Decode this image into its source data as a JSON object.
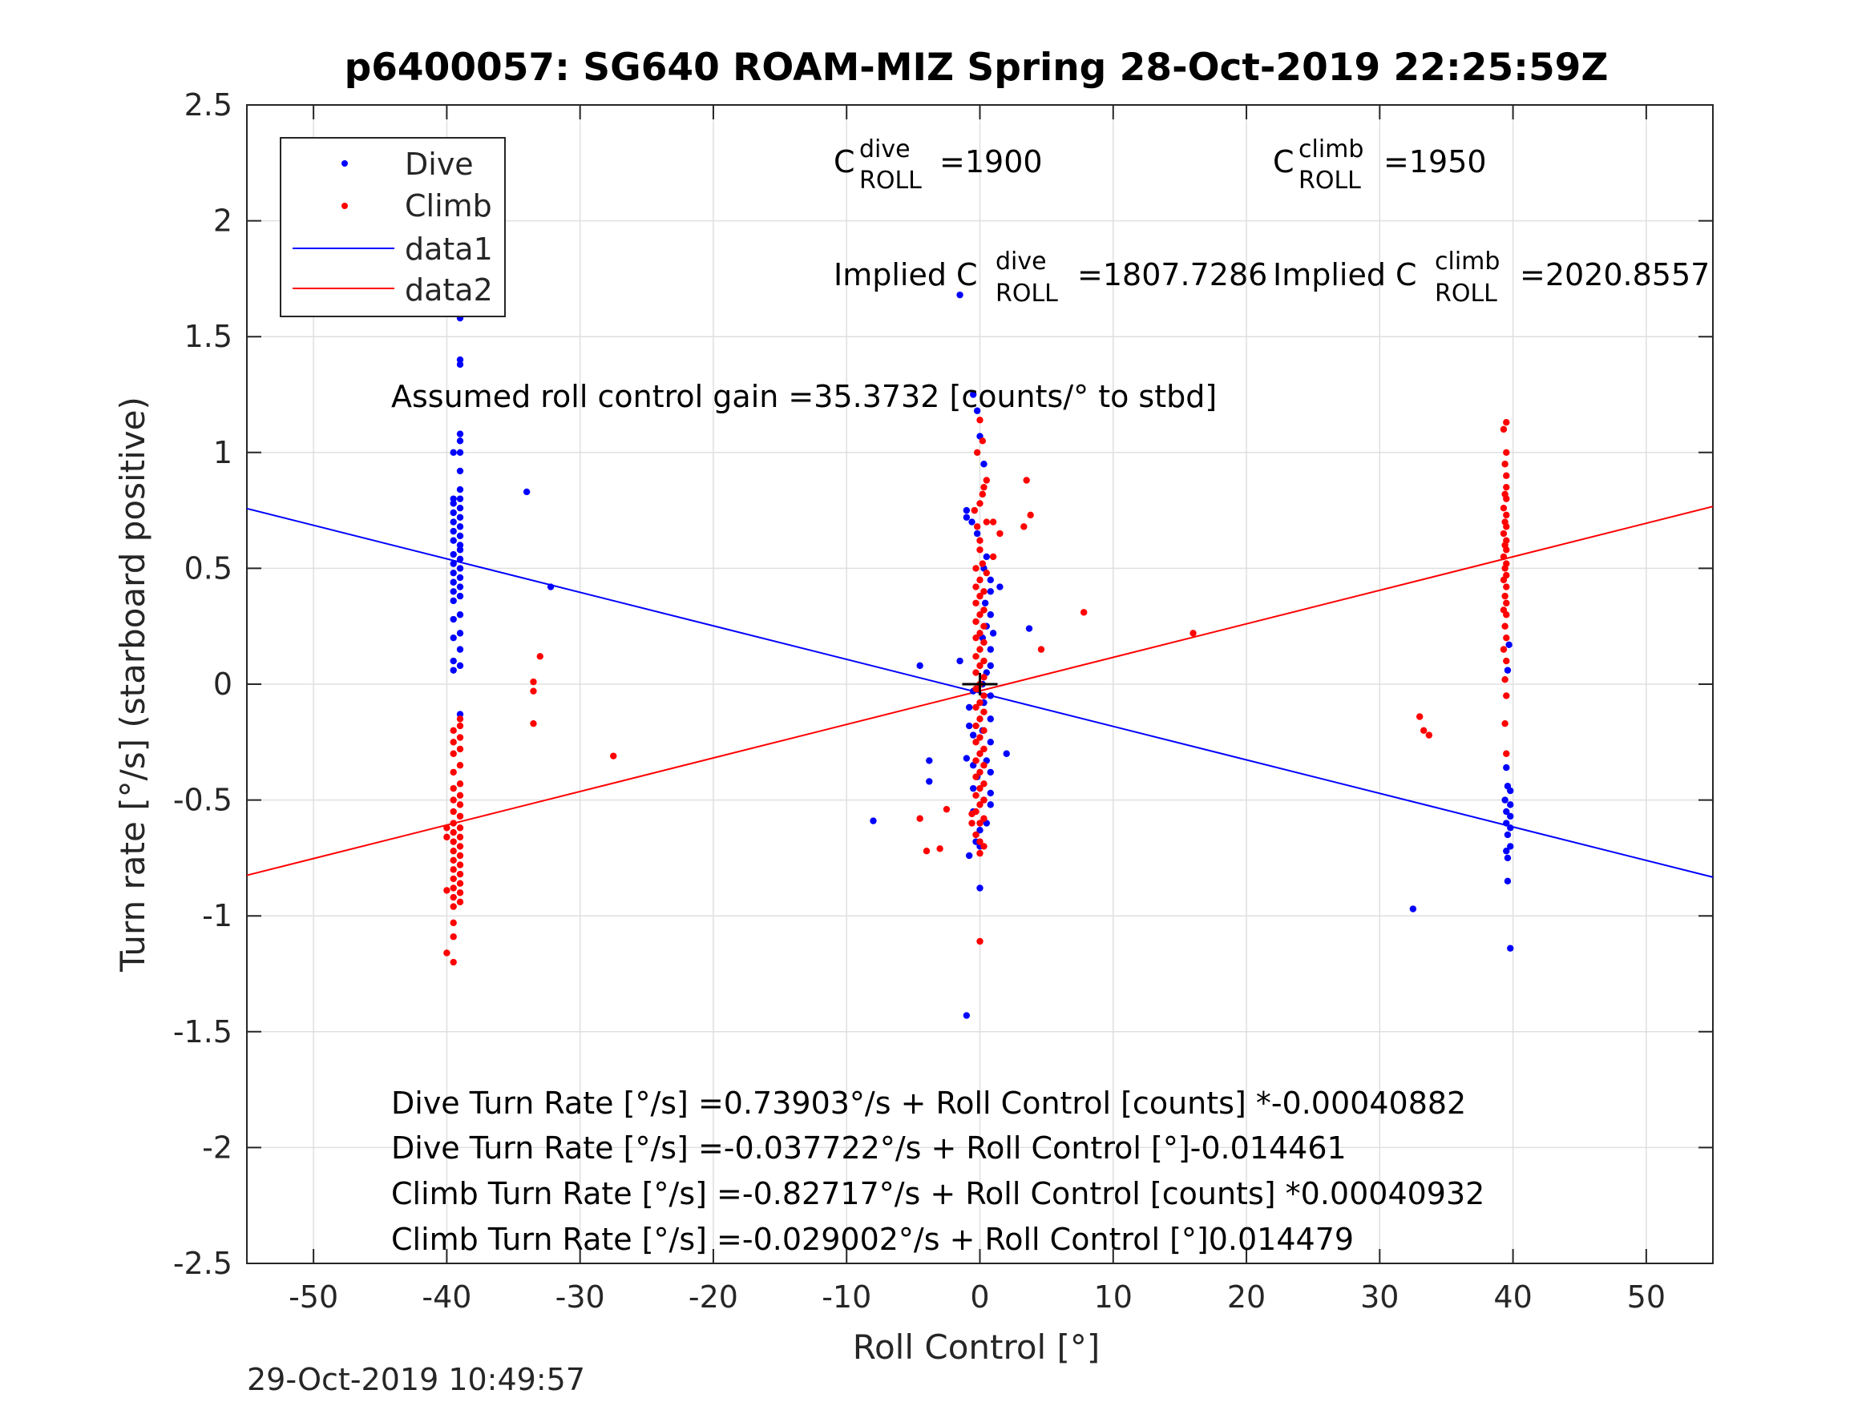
{
  "chart_data": {
    "type": "scatter",
    "title": "p6400057: SG640 ROAM-MIZ Spring 28-Oct-2019 22:25:59Z",
    "xlabel": "Roll Control [°]",
    "ylabel": "Turn rate [°/s] (starboard positive)",
    "xlim": [
      -55,
      55
    ],
    "ylim": [
      -2.5,
      2.5
    ],
    "xticks": [
      -50,
      -40,
      -30,
      -20,
      -10,
      0,
      10,
      20,
      30,
      40,
      50
    ],
    "xtick_labels": [
      "-50",
      "-40",
      "-30",
      "-20",
      "-10",
      "0",
      "10",
      "20",
      "30",
      "40",
      "50"
    ],
    "yticks": [
      -2.5,
      -2,
      -1.5,
      -1,
      -0.5,
      0,
      0.5,
      1,
      1.5,
      2,
      2.5
    ],
    "ytick_labels": [
      "-2.5",
      "-2",
      "-1.5",
      "-1",
      "-0.5",
      "0",
      "0.5",
      "1",
      "1.5",
      "2",
      "2.5"
    ],
    "grid": true,
    "legend_position": "top-left",
    "colors": {
      "dive": "#0000ff",
      "climb": "#ff0000",
      "axis": "#262626",
      "grid": "#dfdfdf"
    },
    "series": [
      {
        "name": "Dive",
        "kind": "points",
        "color": "#0000ff",
        "points": [
          [
            -39,
            1.85
          ],
          [
            -39,
            1.58
          ],
          [
            -39,
            1.4
          ],
          [
            -39,
            1.38
          ],
          [
            -39,
            1.08
          ],
          [
            -39,
            1.05
          ],
          [
            -39,
            1.0
          ],
          [
            -39.5,
            1.0
          ],
          [
            -39,
            0.92
          ],
          [
            -39,
            0.84
          ],
          [
            -39,
            0.8
          ],
          [
            -39.5,
            0.8
          ],
          [
            -39.5,
            0.78
          ],
          [
            -39,
            0.76
          ],
          [
            -39.5,
            0.74
          ],
          [
            -39,
            0.72
          ],
          [
            -39.5,
            0.7
          ],
          [
            -39,
            0.68
          ],
          [
            -39.5,
            0.66
          ],
          [
            -39,
            0.64
          ],
          [
            -39.5,
            0.62
          ],
          [
            -39,
            0.6
          ],
          [
            -39,
            0.58
          ],
          [
            -39.5,
            0.56
          ],
          [
            -39,
            0.54
          ],
          [
            -39.5,
            0.52
          ],
          [
            -39,
            0.5
          ],
          [
            -39.5,
            0.48
          ],
          [
            -39,
            0.46
          ],
          [
            -39.5,
            0.44
          ],
          [
            -39,
            0.42
          ],
          [
            -39.5,
            0.4
          ],
          [
            -39,
            0.38
          ],
          [
            -39.5,
            0.36
          ],
          [
            -39,
            0.3
          ],
          [
            -39.5,
            0.28
          ],
          [
            -39,
            0.22
          ],
          [
            -39.5,
            0.2
          ],
          [
            -39,
            0.15
          ],
          [
            -39.5,
            0.1
          ],
          [
            -39,
            0.08
          ],
          [
            -39.5,
            0.06
          ],
          [
            -39,
            -0.13
          ],
          [
            -34,
            0.83
          ],
          [
            -32.2,
            0.42
          ],
          [
            -1.5,
            1.68
          ],
          [
            -0.5,
            1.25
          ],
          [
            -0.2,
            1.18
          ],
          [
            0,
            1.07
          ],
          [
            0.3,
            0.95
          ],
          [
            -1,
            0.75
          ],
          [
            -1,
            0.72
          ],
          [
            -0.6,
            0.7
          ],
          [
            -0.2,
            0.65
          ],
          [
            0.5,
            0.55
          ],
          [
            0.3,
            0.5
          ],
          [
            0.8,
            0.45
          ],
          [
            1.5,
            0.42
          ],
          [
            0.8,
            0.4
          ],
          [
            0.4,
            0.35
          ],
          [
            0.8,
            0.3
          ],
          [
            0.5,
            0.25
          ],
          [
            1,
            0.22
          ],
          [
            3.7,
            0.24
          ],
          [
            0.2,
            0.2
          ],
          [
            0.8,
            0.15
          ],
          [
            -1.5,
            0.1
          ],
          [
            0.8,
            0.08
          ],
          [
            -4.5,
            0.08
          ],
          [
            0.5,
            0.05
          ],
          [
            0.2,
            0.0
          ],
          [
            -0.5,
            -0.03
          ],
          [
            0.8,
            -0.05
          ],
          [
            0.3,
            -0.08
          ],
          [
            -0.8,
            -0.1
          ],
          [
            0.8,
            -0.15
          ],
          [
            -0.8,
            -0.18
          ],
          [
            0.2,
            -0.2
          ],
          [
            -0.5,
            -0.22
          ],
          [
            0.8,
            -0.25
          ],
          [
            2,
            -0.3
          ],
          [
            -1,
            -0.32
          ],
          [
            0.5,
            -0.33
          ],
          [
            -0.5,
            -0.35
          ],
          [
            0.8,
            -0.38
          ],
          [
            -0.2,
            -0.4
          ],
          [
            -0.5,
            -0.45
          ],
          [
            0.8,
            -0.47
          ],
          [
            0.3,
            -0.5
          ],
          [
            0.8,
            -0.52
          ],
          [
            -0.5,
            -0.55
          ],
          [
            -3.8,
            -0.33
          ],
          [
            -3.8,
            -0.42
          ],
          [
            -8,
            -0.59
          ],
          [
            0.5,
            -0.6
          ],
          [
            0,
            -0.63
          ],
          [
            -0.3,
            -0.68
          ],
          [
            0,
            -0.7
          ],
          [
            -0.8,
            -0.74
          ],
          [
            0,
            -0.88
          ],
          [
            -1,
            -1.43
          ],
          [
            39.7,
            0.17
          ],
          [
            39.6,
            0.06
          ],
          [
            39.5,
            -0.36
          ],
          [
            39.6,
            -0.44
          ],
          [
            39.8,
            -0.46
          ],
          [
            39.4,
            -0.5
          ],
          [
            39.8,
            -0.52
          ],
          [
            39.5,
            -0.55
          ],
          [
            39.8,
            -0.57
          ],
          [
            39.5,
            -0.6
          ],
          [
            39.8,
            -0.62
          ],
          [
            39.6,
            -0.65
          ],
          [
            39.8,
            -0.7
          ],
          [
            39.5,
            -0.72
          ],
          [
            39.6,
            -0.75
          ],
          [
            39.6,
            -0.85
          ],
          [
            32.5,
            -0.97
          ],
          [
            39.8,
            -1.14
          ]
        ]
      },
      {
        "name": "Climb",
        "kind": "points",
        "color": "#ff0000",
        "points": [
          [
            -39,
            -0.15
          ],
          [
            -39,
            -0.18
          ],
          [
            -39.5,
            -0.2
          ],
          [
            -39,
            -0.23
          ],
          [
            -39.5,
            -0.25
          ],
          [
            -39,
            -0.28
          ],
          [
            -39.5,
            -0.3
          ],
          [
            -39,
            -0.35
          ],
          [
            -39.5,
            -0.38
          ],
          [
            -39,
            -0.43
          ],
          [
            -39.5,
            -0.45
          ],
          [
            -39,
            -0.48
          ],
          [
            -39.5,
            -0.5
          ],
          [
            -39,
            -0.52
          ],
          [
            -39.5,
            -0.55
          ],
          [
            -39,
            -0.57
          ],
          [
            -39.5,
            -0.6
          ],
          [
            -39,
            -0.62
          ],
          [
            -39.5,
            -0.64
          ],
          [
            -39,
            -0.66
          ],
          [
            -39.5,
            -0.68
          ],
          [
            -39,
            -0.7
          ],
          [
            -39.5,
            -0.72
          ],
          [
            -39,
            -0.74
          ],
          [
            -39.5,
            -0.76
          ],
          [
            -39,
            -0.78
          ],
          [
            -39.5,
            -0.8
          ],
          [
            -39,
            -0.82
          ],
          [
            -39.5,
            -0.84
          ],
          [
            -39,
            -0.86
          ],
          [
            -39.5,
            -0.88
          ],
          [
            -39,
            -0.9
          ],
          [
            -39.5,
            -0.92
          ],
          [
            -39,
            -0.94
          ],
          [
            -39.5,
            -0.96
          ],
          [
            -40,
            -0.89
          ],
          [
            -40,
            -0.62
          ],
          [
            -40,
            -0.66
          ],
          [
            -39.5,
            -1.03
          ],
          [
            -39.5,
            -1.09
          ],
          [
            -40,
            -1.16
          ],
          [
            -39.5,
            -1.2
          ],
          [
            -33.5,
            0.01
          ],
          [
            -33.5,
            -0.03
          ],
          [
            -33.5,
            -0.17
          ],
          [
            -33,
            0.12
          ],
          [
            -27.5,
            -0.31
          ],
          [
            0,
            1.14
          ],
          [
            0.2,
            1.05
          ],
          [
            -0.2,
            1.0
          ],
          [
            0.5,
            0.88
          ],
          [
            0.3,
            0.85
          ],
          [
            0.2,
            0.82
          ],
          [
            3.5,
            0.88
          ],
          [
            0,
            0.78
          ],
          [
            -0.4,
            0.75
          ],
          [
            3.8,
            0.73
          ],
          [
            0.5,
            0.7
          ],
          [
            1,
            0.7
          ],
          [
            3.3,
            0.68
          ],
          [
            -0.2,
            0.68
          ],
          [
            1.5,
            0.65
          ],
          [
            0,
            0.62
          ],
          [
            0,
            0.58
          ],
          [
            1,
            0.55
          ],
          [
            0.2,
            0.52
          ],
          [
            -0.3,
            0.5
          ],
          [
            0.5,
            0.48
          ],
          [
            0,
            0.45
          ],
          [
            -0.3,
            0.42
          ],
          [
            0.3,
            0.4
          ],
          [
            0,
            0.38
          ],
          [
            -0.3,
            0.35
          ],
          [
            0.3,
            0.32
          ],
          [
            0,
            0.3
          ],
          [
            7.8,
            0.31
          ],
          [
            -0.3,
            0.27
          ],
          [
            0.3,
            0.25
          ],
          [
            0,
            0.22
          ],
          [
            -0.3,
            0.2
          ],
          [
            0.3,
            0.18
          ],
          [
            0,
            0.15
          ],
          [
            4.6,
            0.15
          ],
          [
            -0.3,
            0.12
          ],
          [
            0.3,
            0.1
          ],
          [
            0,
            0.08
          ],
          [
            -0.3,
            0.05
          ],
          [
            0.3,
            0.03
          ],
          [
            0,
            0.0
          ],
          [
            -0.3,
            -0.02
          ],
          [
            0.3,
            -0.05
          ],
          [
            0,
            -0.08
          ],
          [
            -0.3,
            -0.1
          ],
          [
            0.3,
            -0.12
          ],
          [
            0,
            -0.15
          ],
          [
            -0.3,
            -0.18
          ],
          [
            0.3,
            -0.2
          ],
          [
            0,
            -0.23
          ],
          [
            -0.3,
            -0.25
          ],
          [
            0.3,
            -0.28
          ],
          [
            0,
            -0.3
          ],
          [
            -0.3,
            -0.33
          ],
          [
            0.3,
            -0.35
          ],
          [
            0,
            -0.38
          ],
          [
            -0.3,
            -0.4
          ],
          [
            0.3,
            -0.43
          ],
          [
            0,
            -0.45
          ],
          [
            -0.3,
            -0.48
          ],
          [
            0.3,
            -0.5
          ],
          [
            0,
            -0.52
          ],
          [
            -0.3,
            -0.55
          ],
          [
            0.3,
            -0.58
          ],
          [
            0,
            -0.6
          ],
          [
            -0.6,
            -0.56
          ],
          [
            -0.6,
            -0.6
          ],
          [
            -0.3,
            -0.65
          ],
          [
            0,
            -0.68
          ],
          [
            0.3,
            -0.7
          ],
          [
            0,
            -0.73
          ],
          [
            -2.5,
            -0.54
          ],
          [
            -4.5,
            -0.58
          ],
          [
            -4,
            -0.72
          ],
          [
            -3,
            -0.71
          ],
          [
            0,
            -1.11
          ],
          [
            16,
            0.22
          ],
          [
            39.5,
            1.13
          ],
          [
            39.3,
            1.1
          ],
          [
            39.5,
            1.0
          ],
          [
            39.4,
            0.95
          ],
          [
            39.5,
            0.9
          ],
          [
            39.5,
            0.85
          ],
          [
            39.4,
            0.82
          ],
          [
            39.5,
            0.8
          ],
          [
            39.3,
            0.76
          ],
          [
            39.5,
            0.73
          ],
          [
            39.4,
            0.7
          ],
          [
            39.5,
            0.68
          ],
          [
            39.3,
            0.65
          ],
          [
            39.5,
            0.62
          ],
          [
            39.4,
            0.6
          ],
          [
            39.5,
            0.58
          ],
          [
            39.3,
            0.55
          ],
          [
            39.5,
            0.52
          ],
          [
            39.4,
            0.5
          ],
          [
            39.5,
            0.47
          ],
          [
            39.3,
            0.45
          ],
          [
            39.5,
            0.42
          ],
          [
            39.4,
            0.38
          ],
          [
            39.5,
            0.35
          ],
          [
            39.3,
            0.32
          ],
          [
            39.5,
            0.3
          ],
          [
            39.4,
            0.25
          ],
          [
            39.5,
            0.2
          ],
          [
            39.3,
            0.15
          ],
          [
            39.5,
            0.1
          ],
          [
            39.4,
            0.02
          ],
          [
            39.5,
            -0.05
          ],
          [
            39.4,
            -0.17
          ],
          [
            33,
            -0.14
          ],
          [
            33.3,
            -0.2
          ],
          [
            33.7,
            -0.22
          ],
          [
            39.5,
            -0.3
          ]
        ]
      },
      {
        "name": "data1",
        "kind": "line",
        "color": "#0000ff",
        "points": [
          [
            -55,
            0.758
          ],
          [
            55,
            -0.833
          ]
        ]
      },
      {
        "name": "data2",
        "kind": "line",
        "color": "#ff0000",
        "points": [
          [
            -55,
            -0.825
          ],
          [
            55,
            0.767
          ]
        ]
      }
    ],
    "annotations": {
      "c_roll_dive_base": "C",
      "c_roll_dive_sup": "dive",
      "c_roll_dive_sub": "ROLL",
      "c_roll_dive_val": "=1900",
      "c_roll_climb_base": "C",
      "c_roll_climb_sup": "climb",
      "c_roll_climb_sub": "ROLL",
      "c_roll_climb_val": "=1950",
      "implied_dive_base": "Implied C",
      "implied_dive_sup": "dive",
      "implied_dive_sub": "ROLL",
      "implied_dive_val": "=1807.7286",
      "implied_climb_base": "Implied C",
      "implied_climb_sup": "climb",
      "implied_climb_sub": "ROLL",
      "implied_climb_val": "=2020.8557",
      "gain": "Assumed roll control gain =35.3732 [counts/° to stbd]",
      "fit_lines": [
        "Dive Turn Rate [°/s] =0.73903°/s + Roll Control [counts] *-0.00040882",
        "Dive Turn Rate [°/s] =-0.037722°/s + Roll Control [°]-0.014461",
        "Climb Turn Rate [°/s] =-0.82717°/s + Roll Control [counts] *0.00040932",
        "Climb Turn Rate [°/s] =-0.029002°/s + Roll Control [°]0.014479"
      ]
    }
  },
  "footer": {
    "timestamp": "29-Oct-2019 10:49:57"
  }
}
